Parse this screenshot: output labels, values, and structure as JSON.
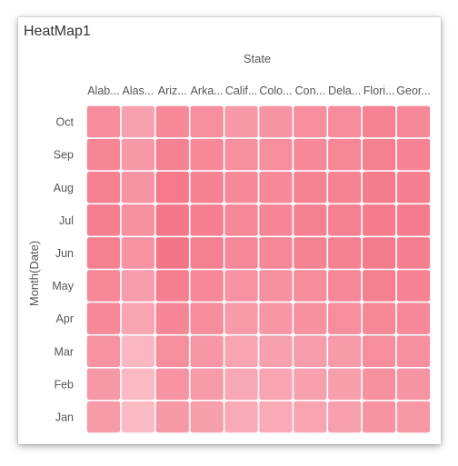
{
  "widget": {
    "title": "HeatMap1"
  },
  "chart_data": {
    "type": "heatmap",
    "title": "HeatMap1",
    "xlabel": "State",
    "ylabel": "Month(Date)",
    "x_tick_labels": [
      "Alab...",
      "Alas...",
      "Ariz...",
      "Arka...",
      "Calif...",
      "Colo...",
      "Con...",
      "Dela...",
      "Flori...",
      "Geor..."
    ],
    "y_tick_labels": [
      "Oct",
      "Sep",
      "Aug",
      "Jul",
      "Jun",
      "May",
      "Apr",
      "Mar",
      "Feb",
      "Jan"
    ],
    "color_range": [
      "#fbc8d0",
      "#f47285"
    ],
    "values": [
      [
        0.7,
        0.45,
        0.75,
        0.68,
        0.55,
        0.6,
        0.68,
        0.7,
        0.8,
        0.75
      ],
      [
        0.78,
        0.55,
        0.82,
        0.75,
        0.65,
        0.68,
        0.74,
        0.76,
        0.84,
        0.8
      ],
      [
        0.82,
        0.6,
        0.92,
        0.82,
        0.72,
        0.75,
        0.8,
        0.8,
        0.88,
        0.85
      ],
      [
        0.86,
        0.65,
        0.95,
        0.85,
        0.75,
        0.78,
        0.82,
        0.84,
        0.9,
        0.88
      ],
      [
        0.84,
        0.62,
        0.97,
        0.84,
        0.74,
        0.76,
        0.8,
        0.82,
        0.88,
        0.86
      ],
      [
        0.76,
        0.5,
        0.85,
        0.74,
        0.62,
        0.65,
        0.7,
        0.74,
        0.84,
        0.8
      ],
      [
        0.74,
        0.42,
        0.78,
        0.7,
        0.52,
        0.58,
        0.64,
        0.68,
        0.76,
        0.74
      ],
      [
        0.62,
        0.2,
        0.68,
        0.58,
        0.42,
        0.45,
        0.5,
        0.52,
        0.68,
        0.66
      ],
      [
        0.56,
        0.18,
        0.62,
        0.52,
        0.38,
        0.42,
        0.45,
        0.48,
        0.64,
        0.6
      ],
      [
        0.52,
        0.15,
        0.55,
        0.48,
        0.35,
        0.35,
        0.42,
        0.45,
        0.6,
        0.56
      ]
    ]
  }
}
